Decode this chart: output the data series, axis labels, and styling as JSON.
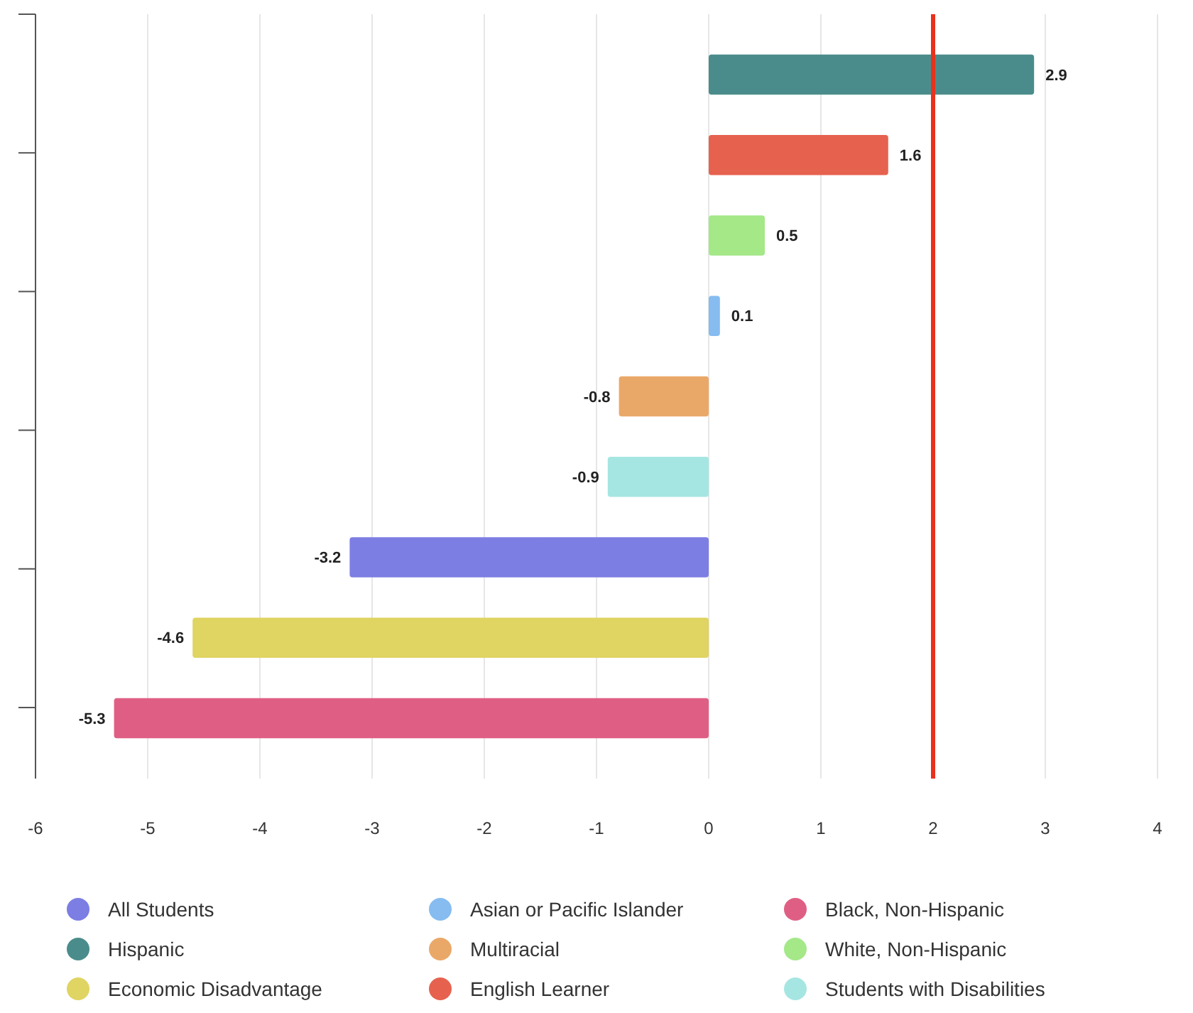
{
  "chart_data": {
    "type": "bar",
    "orientation": "horizontal",
    "categories": [
      null,
      null,
      null,
      null,
      null,
      null,
      null,
      null,
      null
    ],
    "series": [
      {
        "name": "All Students",
        "color": "#7c7ee4",
        "values": [
          null,
          null,
          null,
          null,
          null,
          null,
          -3.2,
          null,
          null
        ]
      },
      {
        "name": "Asian or Pacific Islander",
        "color": "#86bcf0",
        "values": [
          null,
          null,
          null,
          0.1,
          null,
          null,
          null,
          null,
          null
        ]
      },
      {
        "name": "Black, Non-Hispanic",
        "color": "#df5f84",
        "values": [
          null,
          null,
          null,
          null,
          null,
          null,
          null,
          null,
          -5.3
        ]
      },
      {
        "name": "Hispanic",
        "color": "#4a8c8c",
        "values": [
          2.9,
          null,
          null,
          null,
          null,
          null,
          null,
          null,
          null
        ]
      },
      {
        "name": "Multiracial",
        "color": "#eaa868",
        "values": [
          null,
          null,
          null,
          null,
          -0.8,
          null,
          null,
          null,
          null
        ]
      },
      {
        "name": "White, Non-Hispanic",
        "color": "#a4e888",
        "values": [
          null,
          null,
          0.5,
          null,
          null,
          null,
          null,
          null,
          null
        ]
      },
      {
        "name": "Economic Disadvantage",
        "color": "#e0d462",
        "values": [
          null,
          null,
          null,
          null,
          null,
          null,
          null,
          -4.6,
          null
        ]
      },
      {
        "name": "English Learner",
        "color": "#e6624f",
        "values": [
          null,
          1.6,
          null,
          null,
          null,
          null,
          null,
          null,
          null
        ]
      },
      {
        "name": "Students with Disabilities",
        "color": "#a6e6e2",
        "values": [
          null,
          null,
          null,
          null,
          null,
          -0.9,
          null,
          null,
          null
        ]
      }
    ],
    "xlim": [
      -6,
      4
    ],
    "xticks": [
      -6,
      -5,
      -4,
      -3,
      -2,
      -1,
      0,
      1,
      2,
      3,
      4
    ],
    "grid": "x",
    "data_labels": true,
    "legend": "bottom",
    "ref_lines": [
      {
        "axis": "x",
        "value": 2,
        "color": "#e8321e"
      }
    ]
  }
}
